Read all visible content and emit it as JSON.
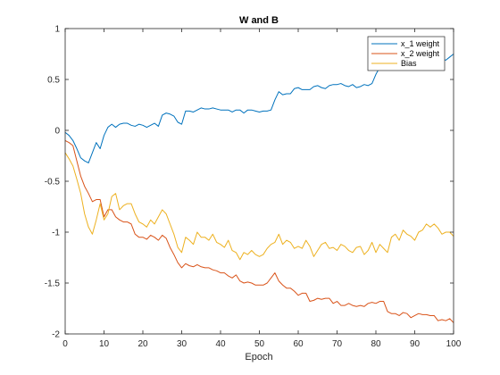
{
  "chart_data": {
    "type": "line",
    "title": "W and B",
    "xlabel": "Epoch",
    "ylabel": "",
    "xlim": [
      0,
      100
    ],
    "ylim": [
      -2,
      1
    ],
    "xticks": [
      0,
      10,
      20,
      30,
      40,
      50,
      60,
      70,
      80,
      90,
      100
    ],
    "xtick_labels": [
      "0",
      "10",
      "20",
      "30",
      "40",
      "50",
      "60",
      "70",
      "80",
      "90",
      "100"
    ],
    "yticks": [
      1,
      0.5,
      0,
      -0.5,
      -1,
      -1.5,
      -2
    ],
    "ytick_labels": [
      "1",
      "0.5",
      "0",
      "-0.5",
      "-1",
      "-1.5",
      "-2"
    ],
    "grid": false,
    "legend_position": "top-right",
    "x": [
      0,
      1,
      2,
      3,
      4,
      5,
      6,
      7,
      8,
      9,
      10,
      11,
      12,
      13,
      14,
      15,
      16,
      17,
      18,
      19,
      20,
      21,
      22,
      23,
      24,
      25,
      26,
      27,
      28,
      29,
      30,
      31,
      32,
      33,
      34,
      35,
      36,
      37,
      38,
      39,
      40,
      41,
      42,
      43,
      44,
      45,
      46,
      47,
      48,
      49,
      50,
      51,
      52,
      53,
      54,
      55,
      56,
      57,
      58,
      59,
      60,
      61,
      62,
      63,
      64,
      65,
      66,
      67,
      68,
      69,
      70,
      71,
      72,
      73,
      74,
      75,
      76,
      77,
      78,
      79,
      80,
      81,
      82,
      83,
      84,
      85,
      86,
      87,
      88,
      89,
      90,
      91,
      92,
      93,
      94,
      95,
      96,
      97,
      98,
      99,
      100
    ],
    "series": [
      {
        "name": "x_1 weight",
        "color": "#0072BD",
        "values": [
          -0.02,
          -0.05,
          -0.1,
          -0.18,
          -0.27,
          -0.3,
          -0.32,
          -0.22,
          -0.12,
          -0.18,
          -0.05,
          0.03,
          0.06,
          0.03,
          0.06,
          0.07,
          0.07,
          0.05,
          0.04,
          0.06,
          0.05,
          0.03,
          0.05,
          0.07,
          0.04,
          0.15,
          0.17,
          0.16,
          0.14,
          0.08,
          0.06,
          0.19,
          0.19,
          0.18,
          0.2,
          0.22,
          0.21,
          0.21,
          0.22,
          0.21,
          0.2,
          0.2,
          0.2,
          0.18,
          0.2,
          0.2,
          0.17,
          0.2,
          0.2,
          0.19,
          0.18,
          0.19,
          0.19,
          0.2,
          0.3,
          0.38,
          0.35,
          0.36,
          0.36,
          0.41,
          0.42,
          0.4,
          0.4,
          0.4,
          0.43,
          0.44,
          0.42,
          0.41,
          0.44,
          0.45,
          0.45,
          0.46,
          0.44,
          0.43,
          0.45,
          0.42,
          0.43,
          0.45,
          0.44,
          0.46,
          0.55,
          0.62,
          0.66,
          0.6,
          0.62,
          0.63,
          0.65,
          0.66,
          0.64,
          0.63,
          0.68,
          0.7,
          0.68,
          0.66,
          0.7,
          0.72,
          0.73,
          0.7,
          0.69,
          0.72,
          0.75
        ]
      },
      {
        "name": "x_2 weight",
        "color": "#D95319",
        "values": [
          -0.1,
          -0.12,
          -0.15,
          -0.3,
          -0.45,
          -0.55,
          -0.62,
          -0.7,
          -0.68,
          -0.68,
          -0.85,
          -0.78,
          -0.78,
          -0.85,
          -0.88,
          -0.9,
          -0.9,
          -0.92,
          -1.02,
          -1.05,
          -1.05,
          -1.07,
          -1.03,
          -1.05,
          -1.08,
          -1.03,
          -1.06,
          -1.15,
          -1.22,
          -1.3,
          -1.35,
          -1.31,
          -1.33,
          -1.34,
          -1.32,
          -1.34,
          -1.35,
          -1.35,
          -1.37,
          -1.38,
          -1.4,
          -1.4,
          -1.43,
          -1.45,
          -1.42,
          -1.48,
          -1.5,
          -1.49,
          -1.5,
          -1.52,
          -1.52,
          -1.52,
          -1.5,
          -1.45,
          -1.4,
          -1.48,
          -1.52,
          -1.55,
          -1.55,
          -1.58,
          -1.62,
          -1.6,
          -1.6,
          -1.68,
          -1.67,
          -1.65,
          -1.66,
          -1.65,
          -1.65,
          -1.7,
          -1.68,
          -1.72,
          -1.72,
          -1.7,
          -1.72,
          -1.73,
          -1.72,
          -1.73,
          -1.7,
          -1.69,
          -1.7,
          -1.68,
          -1.68,
          -1.78,
          -1.8,
          -1.8,
          -1.82,
          -1.79,
          -1.8,
          -1.84,
          -1.82,
          -1.8,
          -1.81,
          -1.81,
          -1.82,
          -1.82,
          -1.87,
          -1.86,
          -1.87,
          -1.85,
          -1.89
        ]
      },
      {
        "name": "Bias",
        "color": "#EDB120",
        "values": [
          -0.22,
          -0.28,
          -0.35,
          -0.48,
          -0.62,
          -0.82,
          -0.95,
          -1.02,
          -0.88,
          -0.72,
          -0.88,
          -0.82,
          -0.65,
          -0.62,
          -0.78,
          -0.74,
          -0.72,
          -0.72,
          -0.82,
          -0.9,
          -0.92,
          -0.95,
          -0.88,
          -0.92,
          -0.85,
          -0.78,
          -0.82,
          -0.92,
          -1.02,
          -1.15,
          -1.2,
          -1.05,
          -1.08,
          -1.12,
          -1.0,
          -1.05,
          -1.05,
          -1.08,
          -1.02,
          -1.1,
          -1.12,
          -1.15,
          -1.08,
          -1.18,
          -1.2,
          -1.27,
          -1.2,
          -1.22,
          -1.18,
          -1.22,
          -1.24,
          -1.22,
          -1.16,
          -1.12,
          -1.1,
          -1.02,
          -1.12,
          -1.08,
          -1.1,
          -1.16,
          -1.14,
          -1.16,
          -1.08,
          -1.14,
          -1.24,
          -1.18,
          -1.12,
          -1.1,
          -1.16,
          -1.15,
          -1.18,
          -1.12,
          -1.14,
          -1.18,
          -1.2,
          -1.15,
          -1.14,
          -1.22,
          -1.18,
          -1.1,
          -1.2,
          -1.12,
          -1.16,
          -1.2,
          -1.05,
          -1.02,
          -1.08,
          -0.98,
          -1.02,
          -1.04,
          -1.08,
          -1.0,
          -0.98,
          -0.92,
          -0.95,
          -0.92,
          -0.96,
          -1.02,
          -1.0,
          -1.0,
          -1.04
        ]
      }
    ]
  }
}
